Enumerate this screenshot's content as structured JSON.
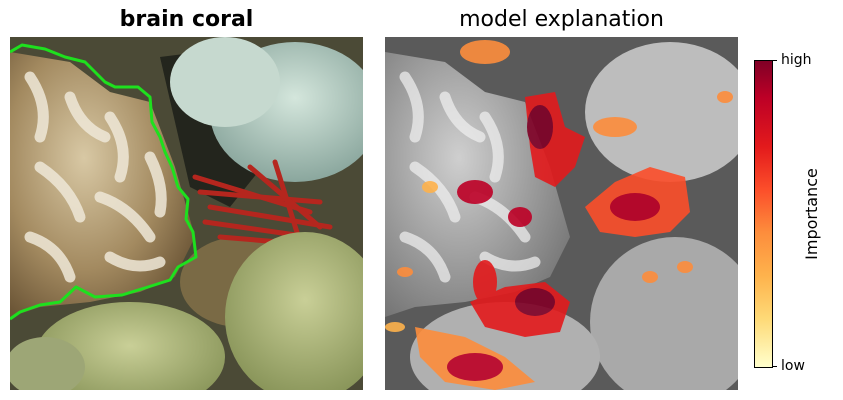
{
  "left_panel": {
    "title": "brain coral"
  },
  "right_panel": {
    "title": "model explanation"
  },
  "colorbar": {
    "label": "Importance",
    "high_label": "high",
    "low_label": "low",
    "colors": [
      "#800026",
      "#bd0026",
      "#e31a1c",
      "#fc4e2a",
      "#fd8d3c",
      "#feb24c",
      "#fed976",
      "#ffffcc"
    ]
  },
  "outline_color": "#1ee01e"
}
